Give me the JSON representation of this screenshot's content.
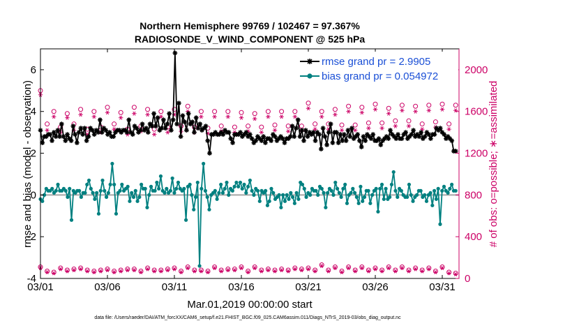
{
  "chart_data": {
    "type": "line",
    "title": "Northern Hemisphere 99769 / 102467 = 97.367%",
    "subtitle": "RADIOSONDE_V_WIND_COMPONENT @ 525 hPa",
    "xlabel": "Mar.01,2019 00:00:00 start",
    "ylabel_left": "rmse and bias (model - observation)",
    "ylabel_right": "# of obs: o=possible; ∗=assimilated",
    "footer": "data file: /Users/raeder/DAI/ATM_forcXX/CAM6_setup/f.e21.FHIST_BGC.f09_025.CAM6assim.011/Diags_NTrS_2019-03/obs_diag_output.nc",
    "x_range": [
      0,
      31.25
    ],
    "ylim_left": [
      -4,
      7
    ],
    "ylim_right": [
      0,
      2200
    ],
    "x_ticks": [
      {
        "day": 0,
        "label": "03/01"
      },
      {
        "day": 5,
        "label": "03/06"
      },
      {
        "day": 10,
        "label": "03/11"
      },
      {
        "day": 15,
        "label": "03/16"
      },
      {
        "day": 20,
        "label": "03/21"
      },
      {
        "day": 25,
        "label": "03/26"
      },
      {
        "day": 30,
        "label": "03/31"
      }
    ],
    "y_ticks_left": [
      -4,
      -2,
      0,
      2,
      4,
      6
    ],
    "y_ticks_right": [
      0,
      400,
      800,
      1200,
      1600,
      2000
    ],
    "grid": false,
    "legend_position": "top-right",
    "colors": {
      "rmse": "#000000",
      "bias": "#008080",
      "obs": "#cc0066",
      "zero_line": "#a6a6a6",
      "legend_text": "#1a4fd6"
    },
    "series": [
      {
        "name": "rmse grand pr = 2.9905",
        "axis": "left",
        "marker": "star",
        "values": [
          3.1,
          2.5,
          2.8,
          2.8,
          2.9,
          2.9,
          2.6,
          3.0,
          2.8,
          3.1,
          2.8,
          3.4,
          2.8,
          2.6,
          2.9,
          2.7,
          2.6,
          3.3,
          2.9,
          2.5,
          3.0,
          3.2,
          2.9,
          3.2,
          2.6,
          2.8,
          3.2,
          3.1,
          2.9,
          3.1,
          3.0,
          3.6,
          3.0,
          3.2,
          3.1,
          2.9,
          3.0,
          2.8,
          2.8,
          3.0,
          3.1,
          3.1,
          3.0,
          3.1,
          3.1,
          3.0,
          3.6,
          3.0,
          2.9,
          3.3,
          3.2,
          3.0,
          3.1,
          3.4,
          3.1,
          3.2,
          3.0,
          3.4,
          3.3,
          3.9,
          3.3,
          3.7,
          3.1,
          3.2,
          3.6,
          3.2,
          3.4,
          3.9,
          3.1,
          3.6,
          6.8,
          3.4,
          4.4,
          2.8,
          3.8,
          3.5,
          3.1,
          3.9,
          3.4,
          3.5,
          3.0,
          3.7,
          3.2,
          3.4,
          3.1,
          3.2,
          3.3,
          2.6,
          2.0,
          2.9,
          2.9,
          3.0,
          2.9,
          2.9,
          3.0,
          2.9,
          3.1,
          3.0,
          3.0,
          2.7,
          2.5,
          2.9,
          2.9,
          2.9,
          3.0,
          2.8,
          2.9,
          3.0,
          2.8,
          2.9,
          2.7,
          2.5,
          2.6,
          2.8,
          2.7,
          2.6,
          2.8,
          2.5,
          2.7,
          2.7,
          2.6,
          2.9,
          2.8,
          2.6,
          2.7,
          2.8,
          2.7,
          2.5,
          2.7,
          2.7,
          2.8,
          3.3,
          2.8,
          3.2,
          3.6,
          2.8,
          3.1,
          2.6,
          3.1,
          2.8,
          3.0,
          2.9,
          3.0,
          2.6,
          3.0,
          2.9,
          2.2,
          3.2,
          2.8,
          2.4,
          3.0,
          3.4,
          2.5,
          3.0,
          3.0,
          2.5,
          2.9,
          2.6,
          2.9,
          2.6,
          3.1,
          2.8,
          3.2,
          2.7,
          2.8,
          2.9,
          2.6,
          2.3,
          2.8,
          2.6,
          2.9,
          2.8,
          2.7,
          2.9,
          2.6,
          2.6,
          2.7,
          2.4,
          2.6,
          2.7,
          2.8,
          2.7,
          3.1,
          2.9,
          2.8,
          2.7,
          2.9,
          2.7,
          2.7,
          2.9,
          3.0,
          2.7,
          2.8,
          2.9,
          3.1,
          2.8,
          2.9,
          2.8,
          3.0,
          2.7,
          2.8,
          3.0,
          2.9,
          2.7,
          2.9,
          2.9,
          3.2,
          3.1,
          3.2,
          3.0,
          2.9,
          2.7,
          2.8,
          2.7,
          2.6,
          2.1,
          2.1
        ]
      },
      {
        "name": "bias grand pr = 0.054972",
        "axis": "left",
        "marker": "circle",
        "values": [
          -0.2,
          -0.3,
          0.0,
          0.3,
          0.2,
          0.2,
          0.3,
          0.1,
          0.2,
          0.5,
          0.2,
          0.2,
          0.3,
          0.2,
          -0.1,
          0.3,
          -1.2,
          0.2,
          0.1,
          0.2,
          0.2,
          -0.1,
          0.1,
          0.1,
          0.5,
          0.7,
          0.3,
          0.1,
          -0.2,
          0.1,
          -0.9,
          0.2,
          0.7,
          0.2,
          -0.1,
          0.1,
          0.5,
          1.5,
          0.5,
          -0.9,
          0.1,
          0.2,
          0.5,
          0.2,
          0.3,
          0.4,
          -0.3,
          0.1,
          -0.1,
          0.2,
          -0.3,
          -0.1,
          0.5,
          0.3,
          0.3,
          -0.6,
          0.0,
          0.4,
          0.2,
          0.2,
          0.6,
          0.3,
          0.9,
          0.2,
          0.1,
          0.3,
          0.1,
          0.2,
          0.8,
          0.1,
          0.3,
          0.6,
          0.3,
          0.2,
          0.3,
          -1.2,
          0.4,
          0.5,
          0.0,
          -0.7,
          -0.1,
          0.6,
          -3.4,
          0.3,
          1.5,
          0.2,
          -0.1,
          -0.7,
          0.0,
          0.1,
          0.2,
          -0.2,
          0.1,
          0.5,
          0.1,
          0.3,
          0.6,
          0.0,
          0.3,
          0.2,
          0.4,
          0.6,
          0.4,
          0.6,
          0.3,
          0.5,
          0.1,
          0.4,
          0.7,
          0.2,
          0.0,
          0.3,
          0.2,
          -0.3,
          0.2,
          0.1,
          0.2,
          -0.5,
          -0.3,
          0.3,
          0.1,
          -0.2,
          -0.1,
          0.0,
          -0.6,
          0.0,
          -0.3,
          0.0,
          -0.2,
          0.1,
          -0.1,
          -0.4,
          0.1,
          -0.2,
          0.6,
          0.5,
          0.3,
          -0.1,
          0.1,
          0.0,
          0.3,
          0.2,
          0.2,
          0.0,
          0.4,
          0.3,
          0.1,
          -0.6,
          0.1,
          0.3,
          0.2,
          0.0,
          0.6,
          0.3,
          0.1,
          -0.1,
          0.3,
          0.5,
          -0.4,
          0.0,
          0.1,
          0.3,
          0.1,
          -0.1,
          -0.4,
          0.4,
          -0.3,
          -0.1,
          0.2,
          0.2,
          -0.4,
          0.0,
          0.2,
          0.3,
          -0.8,
          0.3,
          0.5,
          -0.2,
          0.3,
          -0.2,
          -0.1,
          0.5,
          1.1,
          0.2,
          -0.1,
          0.3,
          0.2,
          0.0,
          -0.1,
          -0.1,
          0.5,
          0.0,
          -0.3,
          -0.1,
          0.0,
          0.2,
          0.2,
          -0.1,
          0.0,
          -0.3,
          0.0,
          0.1,
          -0.5,
          0.2,
          -0.2,
          0.3,
          -1.4,
          0.2,
          0.4,
          0.2,
          0.1,
          0.3,
          0.5,
          0.2,
          0.2
        ]
      },
      {
        "name": "obs possible",
        "axis": "right",
        "marker": "open-circle",
        "days": [
          0,
          0.5,
          1,
          1.5,
          2,
          2.5,
          3,
          3.5,
          4,
          4.5,
          5,
          5.5,
          6,
          6.5,
          7,
          7.5,
          8,
          8.5,
          9,
          9.5,
          10,
          10.5,
          11,
          11.5,
          12,
          12.5,
          13,
          13.5,
          14,
          14.5,
          15,
          15.5,
          16,
          16.5,
          17,
          17.5,
          18,
          18.5,
          19,
          19.5,
          20,
          20.5,
          21,
          21.5,
          22,
          22.5,
          23,
          23.5,
          24,
          24.5,
          25,
          25.5,
          26,
          26.5,
          27,
          27.5,
          28,
          28.5,
          29,
          29.5,
          30,
          30.5,
          31
        ],
        "high": [
          1800,
          1480,
          1600,
          1450,
          1580,
          1480,
          1620,
          1430,
          1600,
          1450,
          1640,
          1480,
          1590,
          1430,
          1640,
          1460,
          1620,
          1430,
          1600,
          1450,
          1620,
          1460,
          1650,
          1450,
          1600,
          1440,
          1600,
          1460,
          1600,
          1450,
          1590,
          1460,
          1580,
          1450,
          1600,
          1470,
          1600,
          1460,
          1600,
          1460,
          1680,
          1480,
          1600,
          1480,
          1620,
          1470,
          1650,
          1470,
          1640,
          1490,
          1670,
          1490,
          1630,
          1510,
          1660,
          1510,
          1650,
          1480,
          1660,
          1500,
          1670,
          1480,
          1660
        ],
        "low": [
          110,
          70,
          60,
          100,
          80,
          90,
          100,
          80,
          70,
          80,
          90,
          70,
          80,
          90,
          90,
          70,
          100,
          80,
          80,
          90,
          100,
          70,
          110,
          80,
          80,
          70,
          110,
          80,
          90,
          90,
          110,
          70,
          110,
          80,
          90,
          80,
          90,
          80,
          100,
          90,
          100,
          80,
          130,
          80,
          110,
          70,
          110,
          80,
          110,
          80,
          100,
          80,
          110,
          80,
          110,
          80,
          100,
          80,
          100,
          70,
          110,
          60,
          50
        ]
      },
      {
        "name": "obs assimilated",
        "axis": "right",
        "marker": "asterisk",
        "days": [
          0,
          0.5,
          1,
          1.5,
          2,
          2.5,
          3,
          3.5,
          4,
          4.5,
          5,
          5.5,
          6,
          6.5,
          7,
          7.5,
          8,
          8.5,
          9,
          9.5,
          10,
          10.5,
          11,
          11.5,
          12,
          12.5,
          13,
          13.5,
          14,
          14.5,
          15,
          15.5,
          16,
          16.5,
          17,
          17.5,
          18,
          18.5,
          19,
          19.5,
          20,
          20.5,
          21,
          21.5,
          22,
          22.5,
          23,
          23.5,
          24,
          24.5,
          25,
          25.5,
          26,
          26.5,
          27,
          27.5,
          28,
          28.5,
          29,
          29.5,
          30,
          30.5,
          31
        ],
        "high": [
          1760,
          1420,
          1550,
          1400,
          1540,
          1420,
          1570,
          1380,
          1550,
          1400,
          1590,
          1430,
          1540,
          1380,
          1580,
          1410,
          1570,
          1380,
          1550,
          1400,
          1570,
          1410,
          1600,
          1400,
          1550,
          1390,
          1550,
          1410,
          1550,
          1400,
          1540,
          1410,
          1530,
          1400,
          1550,
          1420,
          1550,
          1410,
          1550,
          1410,
          1630,
          1430,
          1550,
          1430,
          1570,
          1420,
          1600,
          1420,
          1590,
          1440,
          1620,
          1440,
          1580,
          1460,
          1610,
          1460,
          1600,
          1430,
          1610,
          1450,
          1620,
          1430,
          1610
        ],
        "low": [
          100,
          60,
          50,
          90,
          70,
          80,
          90,
          70,
          60,
          70,
          80,
          60,
          70,
          80,
          80,
          60,
          90,
          70,
          70,
          80,
          90,
          60,
          100,
          70,
          70,
          60,
          100,
          70,
          80,
          80,
          100,
          60,
          100,
          70,
          80,
          70,
          80,
          70,
          90,
          80,
          90,
          70,
          120,
          70,
          100,
          60,
          100,
          70,
          100,
          70,
          90,
          70,
          100,
          70,
          100,
          70,
          90,
          70,
          90,
          60,
          100,
          50,
          40
        ]
      }
    ]
  }
}
